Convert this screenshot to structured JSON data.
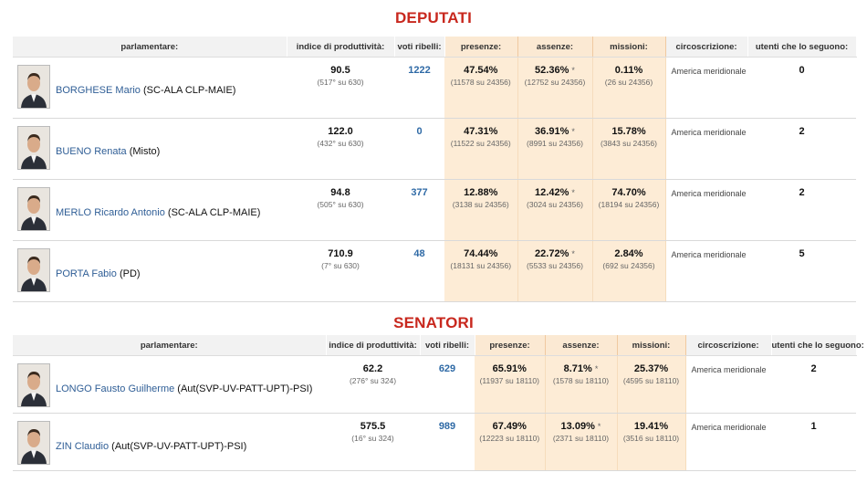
{
  "deputati": {
    "title": "DEPUTATI",
    "headers": {
      "parlamentare": "parlamentare:",
      "produttivita": "indice di produttività:",
      "ribelli": "voti ribelli:",
      "presenze": "presenze:",
      "assenze": "assenze:",
      "missioni": "missioni:",
      "circoscrizione": "circoscrizione:",
      "utenti": "utenti che lo seguono:"
    },
    "rows": [
      {
        "surname": "BORGHESE",
        "first": "Mario",
        "party": "(SC-ALA CLP-MAIE)",
        "prod": "90.5",
        "prod_rank": "(517° su 630)",
        "ribelli": "1222",
        "pres": "47.54%",
        "pres_sub": "(11578 su 24356)",
        "ass": "52.36%",
        "ass_star": "*",
        "ass_sub": "(12752 su 24356)",
        "miss": "0.11%",
        "miss_sub": "(26 su 24356)",
        "circ": "America meridionale",
        "utenti": "0"
      },
      {
        "surname": "BUENO",
        "first": "Renata",
        "party": "(Misto)",
        "prod": "122.0",
        "prod_rank": "(432° su 630)",
        "ribelli": "0",
        "pres": "47.31%",
        "pres_sub": "(11522 su 24356)",
        "ass": "36.91%",
        "ass_star": "*",
        "ass_sub": "(8991 su 24356)",
        "miss": "15.78%",
        "miss_sub": "(3843 su 24356)",
        "circ": "America meridionale",
        "utenti": "2"
      },
      {
        "surname": "MERLO",
        "first": "Ricardo Antonio",
        "party": "(SC-ALA CLP-MAIE)",
        "prod": "94.8",
        "prod_rank": "(505° su 630)",
        "ribelli": "377",
        "pres": "12.88%",
        "pres_sub": "(3138 su 24356)",
        "ass": "12.42%",
        "ass_star": "*",
        "ass_sub": "(3024 su 24356)",
        "miss": "74.70%",
        "miss_sub": "(18194 su 24356)",
        "circ": "America meridionale",
        "utenti": "2"
      },
      {
        "surname": "PORTA",
        "first": "Fabio",
        "party": "(PD)",
        "prod": "710.9",
        "prod_rank": "(7° su 630)",
        "ribelli": "48",
        "pres": "74.44%",
        "pres_sub": "(18131 su 24356)",
        "ass": "22.72%",
        "ass_star": "*",
        "ass_sub": "(5533 su 24356)",
        "miss": "2.84%",
        "miss_sub": "(692 su 24356)",
        "circ": "America meridionale",
        "utenti": "5"
      }
    ]
  },
  "senatori": {
    "title": "SENATORI",
    "headers": {
      "parlamentare": "parlamentare:",
      "produttivita": "indice di produttività:",
      "ribelli": "voti ribelli:",
      "presenze": "presenze:",
      "assenze": "assenze:",
      "missioni": "missioni:",
      "circoscrizione": "circoscrizione:",
      "utenti": "utenti che lo seguono:"
    },
    "rows": [
      {
        "surname": "LONGO",
        "first": "Fausto Guilherme",
        "party": "(Aut(SVP-UV-PATT-UPT)-PSI)",
        "prod": "62.2",
        "prod_rank": "(276° su 324)",
        "ribelli": "629",
        "pres": "65.91%",
        "pres_sub": "(11937 su 18110)",
        "ass": "8.71%",
        "ass_star": "*",
        "ass_sub": "(1578 su 18110)",
        "miss": "25.37%",
        "miss_sub": "(4595 su 18110)",
        "circ": "America meridionale",
        "utenti": "2"
      },
      {
        "surname": "ZIN",
        "first": "Claudio",
        "party": "(Aut(SVP-UV-PATT-UPT)-PSI)",
        "prod": "575.5",
        "prod_rank": "(16° su 324)",
        "ribelli": "989",
        "pres": "67.49%",
        "pres_sub": "(12223 su 18110)",
        "ass": "13.09%",
        "ass_star": "*",
        "ass_sub": "(2371 su 18110)",
        "miss": "19.41%",
        "miss_sub": "(3516 su 18110)",
        "circ": "America meridionale",
        "utenti": "1"
      }
    ]
  }
}
